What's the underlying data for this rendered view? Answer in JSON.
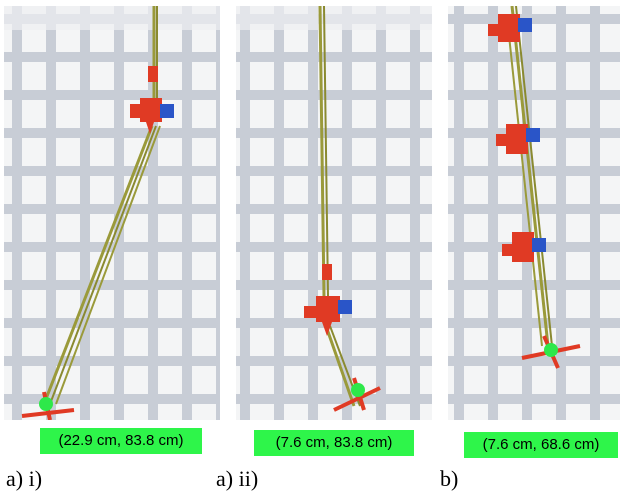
{
  "panels": [
    {
      "coord_label": "(22.9 cm, 83.8 cm)",
      "caption": "a) i)"
    },
    {
      "coord_label": "(7.6 cm, 83.8 cm)",
      "caption": "a) ii)"
    },
    {
      "coord_label": "(7.6 cm, 68.6 cm)",
      "caption": "b)"
    }
  ],
  "colors": {
    "label_bg": "#2ef54a",
    "grid": "#c8cdd6",
    "rod": "#9a9a3a",
    "module_red": "#e03a24",
    "module_blue": "#2a55c8",
    "tip_marker": "#2ee84a"
  }
}
